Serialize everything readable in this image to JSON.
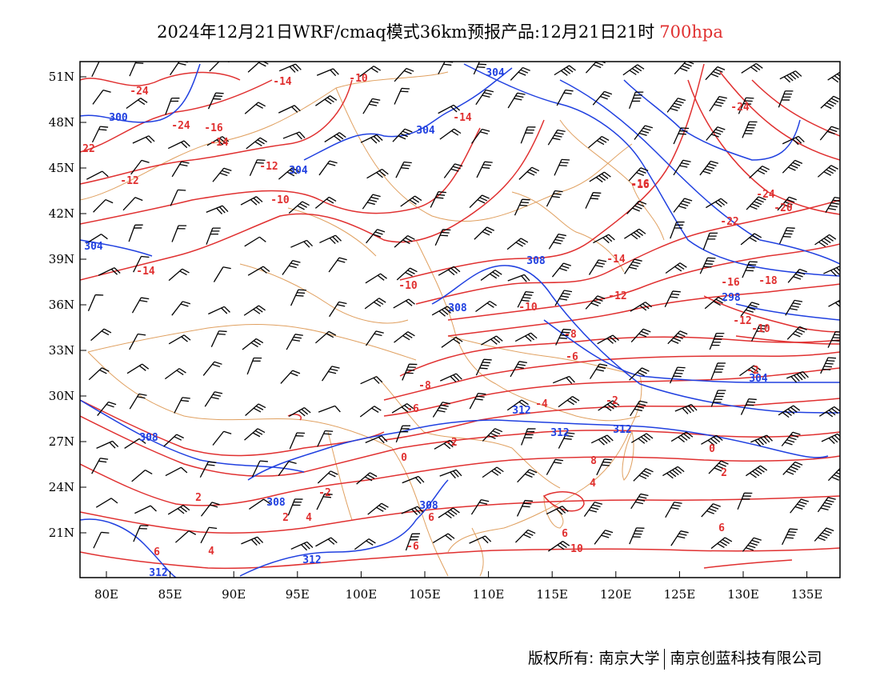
{
  "title": {
    "main": "2024年12月21日WRF/cmaq模式36km预报产品:12月21日21时",
    "level": "700hpa"
  },
  "axes": {
    "lon_labels": [
      "80E",
      "85E",
      "90E",
      "95E",
      "100E",
      "105E",
      "110E",
      "115E",
      "120E",
      "125E",
      "130E",
      "135E"
    ],
    "lat_labels": [
      "51N",
      "48N",
      "45N",
      "42N",
      "39N",
      "36N",
      "33N",
      "30N",
      "27N",
      "24N",
      "21N"
    ]
  },
  "colors": {
    "temperature_contour": "#e03030",
    "height_contour": "#2040e0",
    "boundary": "#e0a060",
    "wind_barb": "#000000"
  },
  "temperature_labels": [
    "-24",
    "-14",
    "-10",
    "-14",
    "-16",
    "-14",
    "-12",
    "-10",
    "-10",
    "22",
    "-16",
    "-24",
    "-24",
    "-20",
    "-22",
    "-14",
    "-16",
    "-18",
    "-12",
    "-10",
    "-12",
    "-14",
    "-12",
    "-10",
    "-8",
    "-6",
    "-2",
    "-8",
    "-6",
    "-4",
    "-2",
    "0",
    "-2",
    "0",
    "2",
    "-2",
    "2",
    "4",
    "6",
    "4",
    "6",
    "-6",
    "6",
    "10",
    "6",
    "8",
    "-24",
    "-16",
    "4",
    "2"
  ],
  "height_labels": [
    "304",
    "300",
    "304",
    "304",
    "304",
    "308",
    "308",
    "298",
    "304",
    "308",
    "312",
    "312",
    "308",
    "308",
    "312",
    "312",
    "312"
  ],
  "footer": {
    "left": "版权所有: 南京大学",
    "right": "南京创蓝科技有限公司"
  }
}
